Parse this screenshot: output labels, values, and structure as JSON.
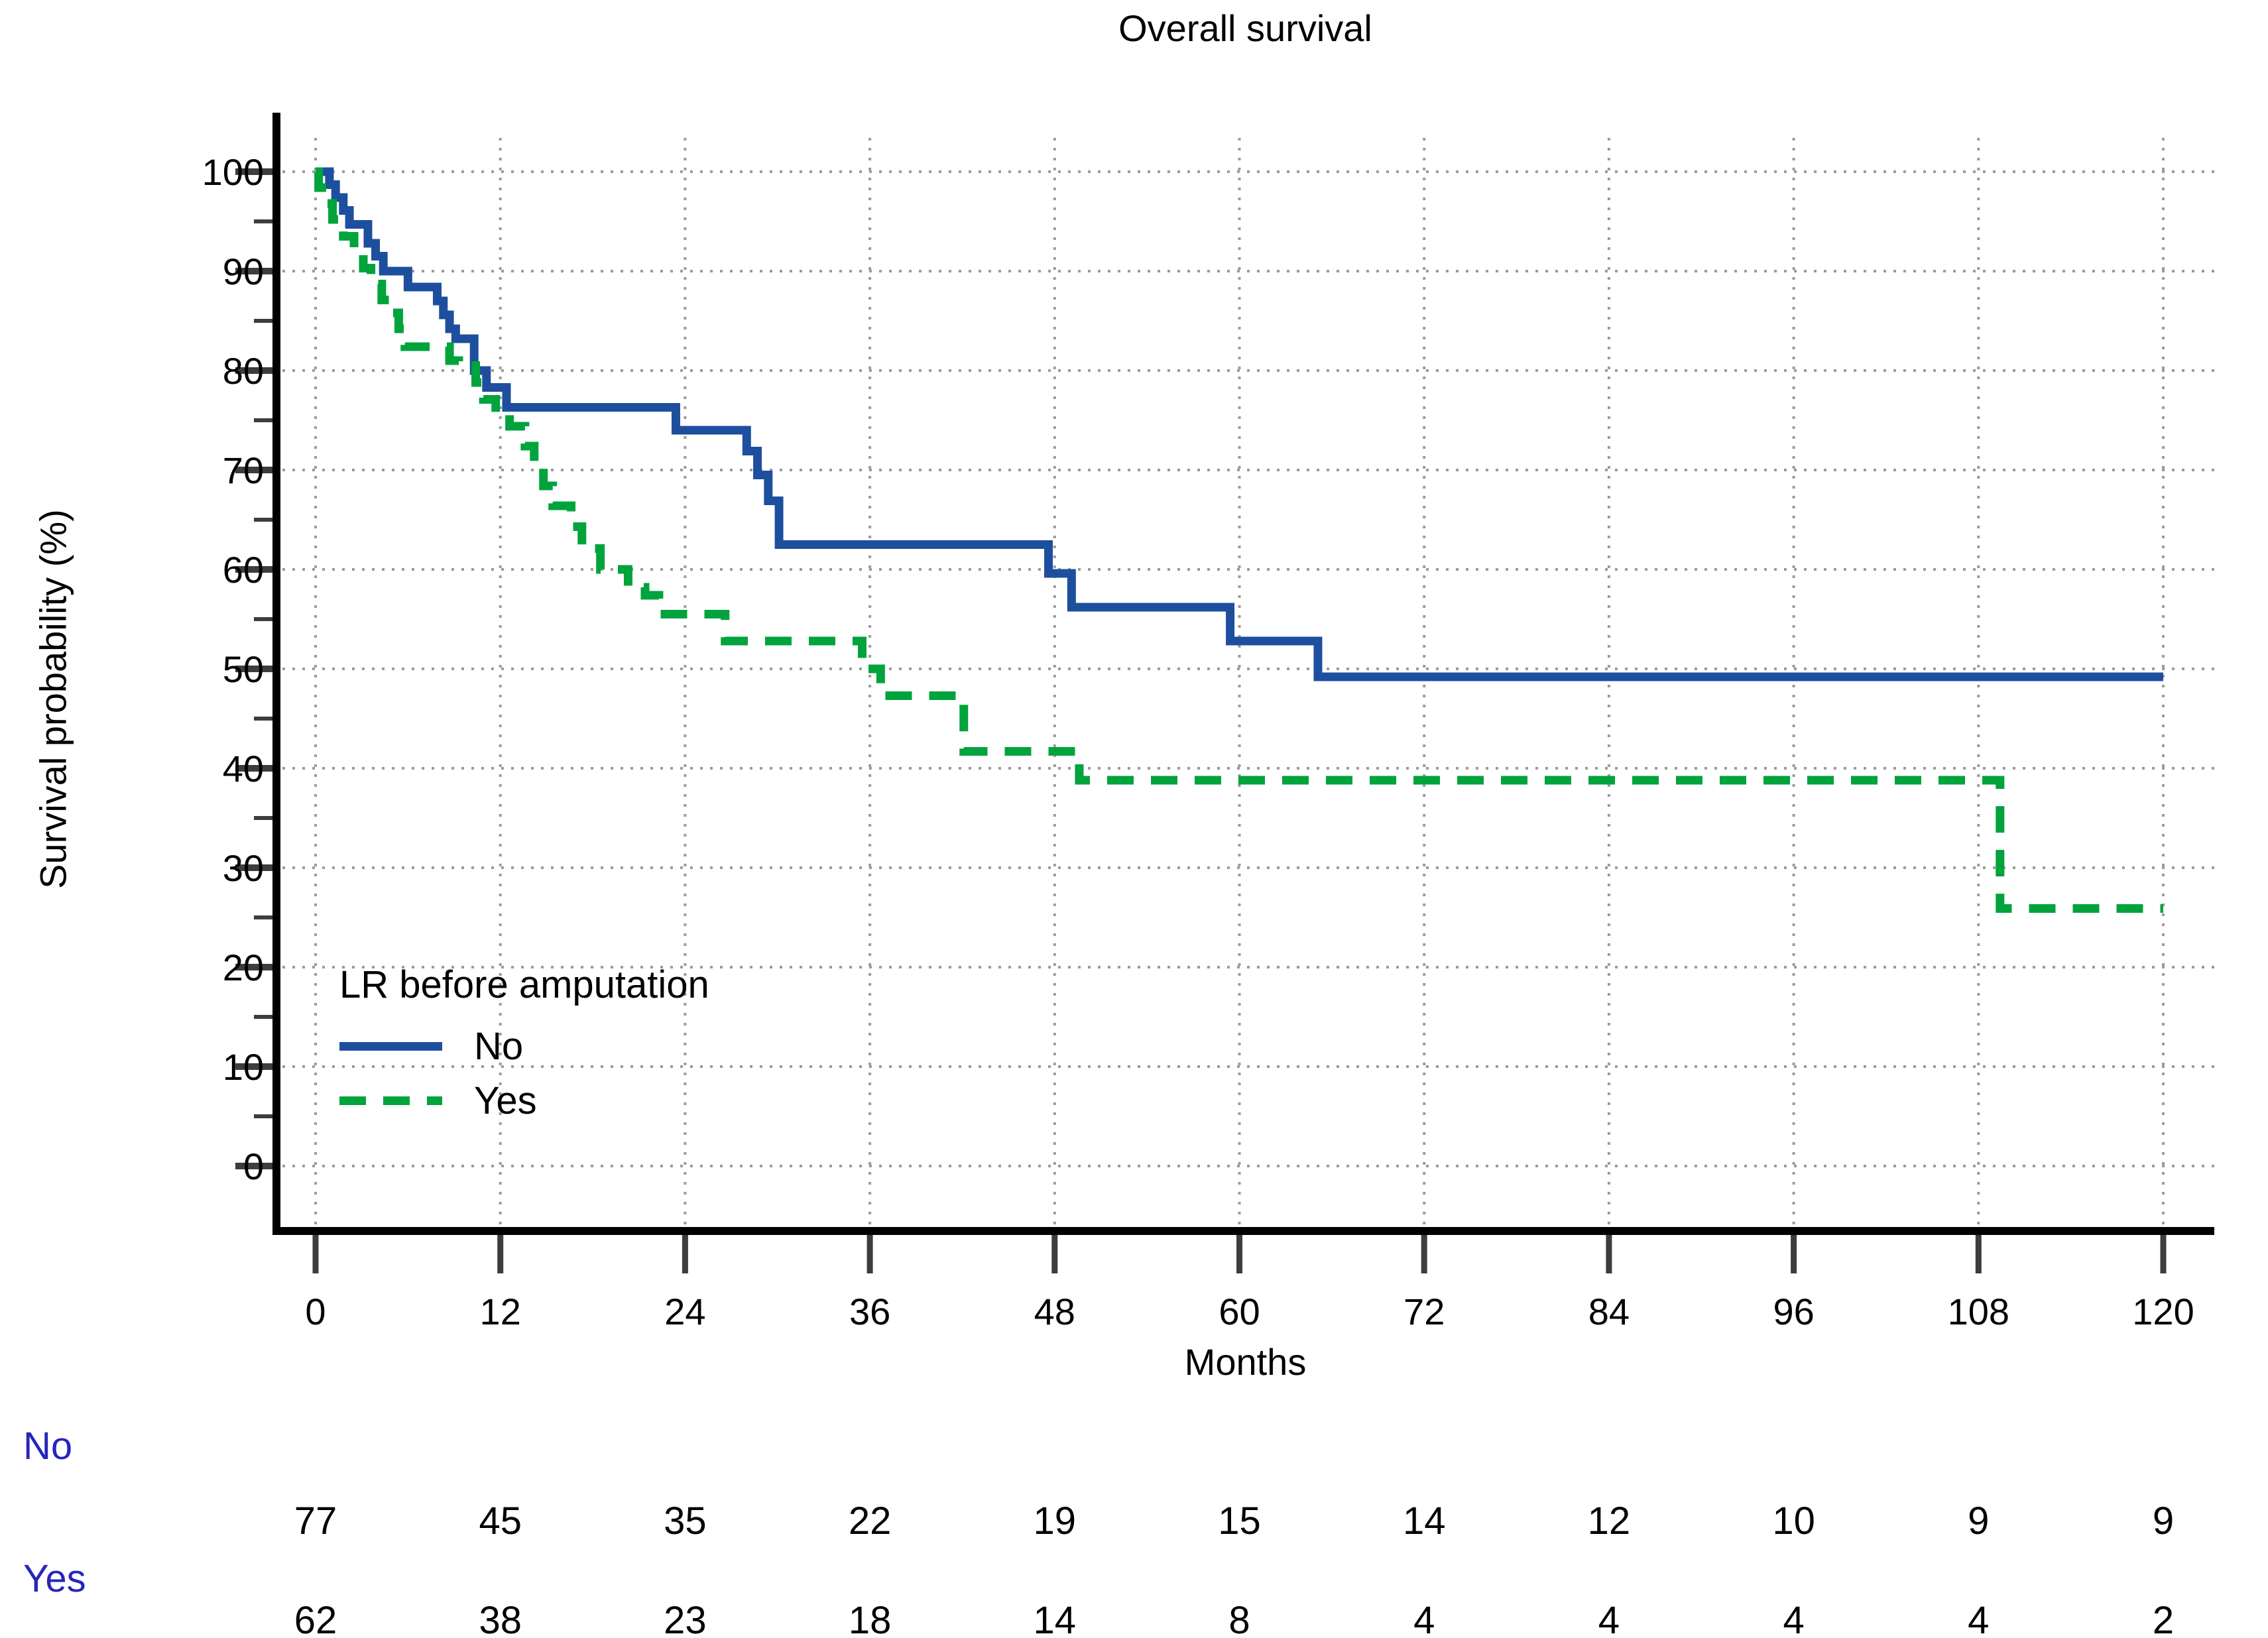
{
  "chart_data": {
    "type": "line",
    "subtype": "kaplan-meier-step",
    "title": "Overall survival",
    "xlabel": "Months",
    "ylabel": "Survival probability (%)",
    "xlim": [
      0,
      120
    ],
    "ylim": [
      0,
      100
    ],
    "x_ticks": [
      0,
      12,
      24,
      36,
      48,
      60,
      72,
      84,
      96,
      108,
      120
    ],
    "y_ticks": [
      0,
      10,
      20,
      30,
      40,
      50,
      60,
      70,
      80,
      90,
      100
    ],
    "y_minor_ticks": [
      5,
      15,
      25,
      35,
      45,
      55,
      65,
      75,
      85,
      95
    ],
    "grid": true,
    "legend": {
      "title": "LR before amputation",
      "position": "inside-lower-left",
      "entries": [
        {
          "label": "No",
          "style": "solid",
          "color": "#1d4f9e"
        },
        {
          "label": "Yes",
          "style": "dashed",
          "color": "#00a33c"
        }
      ]
    },
    "series": [
      {
        "name": "No",
        "color": "#1d4f9e",
        "style": "solid",
        "x_end": 120,
        "steps": [
          [
            0,
            100
          ],
          [
            0.9,
            98.7
          ],
          [
            1.3,
            97.4
          ],
          [
            1.8,
            96.1
          ],
          [
            2.2,
            94.7
          ],
          [
            3.4,
            92.8
          ],
          [
            3.9,
            91.5
          ],
          [
            4.4,
            90.0
          ],
          [
            6.0,
            88.4
          ],
          [
            7.9,
            87.0
          ],
          [
            8.3,
            85.6
          ],
          [
            8.7,
            84.2
          ],
          [
            9.1,
            83.2
          ],
          [
            10.3,
            80.0
          ],
          [
            11.1,
            78.3
          ],
          [
            12.4,
            76.3
          ],
          [
            23.4,
            74.0
          ],
          [
            28.0,
            71.9
          ],
          [
            28.7,
            69.5
          ],
          [
            29.4,
            66.9
          ],
          [
            30.1,
            62.5
          ],
          [
            47.6,
            59.6
          ],
          [
            49.1,
            56.2
          ],
          [
            59.4,
            52.8
          ],
          [
            65.1,
            49.2
          ]
        ]
      },
      {
        "name": "Yes",
        "color": "#00a33c",
        "style": "dashed",
        "x_end": 120,
        "steps": [
          [
            0,
            100
          ],
          [
            0.2,
            98.4
          ],
          [
            0.7,
            96.8
          ],
          [
            1.1,
            95.2
          ],
          [
            1.8,
            93.5
          ],
          [
            2.5,
            91.9
          ],
          [
            3.1,
            90.3
          ],
          [
            3.6,
            88.7
          ],
          [
            4.3,
            87.1
          ],
          [
            4.9,
            85.8
          ],
          [
            5.4,
            84.2
          ],
          [
            5.8,
            82.4
          ],
          [
            8.7,
            81.0
          ],
          [
            9.3,
            80.5
          ],
          [
            10.4,
            78.8
          ],
          [
            10.9,
            77.1
          ],
          [
            11.7,
            75.6
          ],
          [
            12.6,
            74.4
          ],
          [
            13.6,
            72.4
          ],
          [
            14.2,
            70.4
          ],
          [
            14.8,
            68.4
          ],
          [
            15.4,
            66.4
          ],
          [
            16.6,
            64.3
          ],
          [
            17.3,
            62.1
          ],
          [
            18.5,
            60.0
          ],
          [
            20.3,
            58.2
          ],
          [
            21.4,
            57.4
          ],
          [
            22.3,
            55.5
          ],
          [
            26.6,
            52.8
          ],
          [
            35.5,
            50.0
          ],
          [
            36.7,
            47.3
          ],
          [
            42.1,
            41.7
          ],
          [
            49.6,
            38.8
          ],
          [
            109.4,
            25.9
          ]
        ]
      }
    ],
    "risk_table": {
      "label_color": "#2626bb",
      "rows": [
        {
          "label": "No",
          "counts": [
            77,
            45,
            35,
            22,
            19,
            15,
            14,
            12,
            10,
            9,
            9
          ]
        },
        {
          "label": "Yes",
          "counts": [
            62,
            38,
            23,
            18,
            14,
            8,
            4,
            4,
            4,
            4,
            2
          ]
        }
      ]
    },
    "colors": {
      "grid": "#9b9b9b",
      "tick": "#3d3d3d",
      "spine": "#000000",
      "text": "#000000"
    }
  }
}
